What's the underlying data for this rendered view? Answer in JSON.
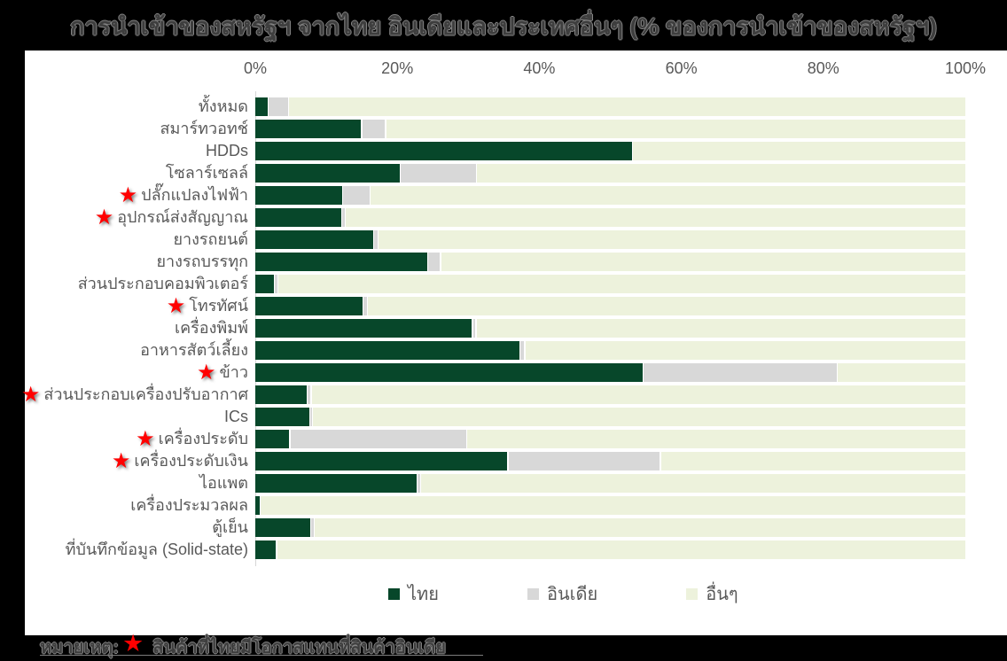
{
  "title": "การนำเข้าของสหรัฐฯ จากไทย อินเดียและประเทศอื่นๆ (% ของการนำเข้าของสหรัฐฯ)",
  "note": {
    "prefix": "หมายเหตุ:",
    "star": "★",
    "text": "สินค้าที่ไทยมีโอกาสแทนที่สินค้าอินเดีย"
  },
  "colors": {
    "thailand": "#07472a",
    "india": "#d8d8d8",
    "others": "#edf2dc",
    "star": "#ff0000",
    "label": "#595959",
    "panel_bg": "#ffffff",
    "page_bg": "#000000"
  },
  "chart_data": {
    "type": "bar",
    "orientation": "horizontal",
    "stacked": true,
    "title": "การนำเข้าของสหรัฐฯ จากไทย อินเดียและประเทศอื่นๆ (% ของการนำเข้าของสหรัฐฯ)",
    "xlabel": "",
    "ylabel": "",
    "xlim": [
      0,
      100
    ],
    "x_ticks": [
      "0%",
      "20%",
      "40%",
      "60%",
      "80%",
      "100%"
    ],
    "grid": false,
    "legend": [
      "ไทย",
      "อินเดีย",
      "อื่นๆ"
    ],
    "legend_position": "bottom",
    "star_note_categories": true,
    "categories": [
      "ทั้งหมด",
      "สมาร์ทวอทช์",
      "HDDs",
      "โซลาร์เซลล์",
      "ปลั๊กแปลงไฟฟ้า",
      "อุปกรณ์ส่งสัญญาณ",
      "ยางรถยนต์",
      "ยางรถบรรทุก",
      "ส่วนประกอบคอมพิวเตอร์",
      "โทรทัศน์",
      "เครื่องพิมพ์",
      "อาหารสัตว์เลี้ยง",
      "ข้าว",
      "ส่วนประกอบเครื่องปรับอากาศ",
      "ICs",
      "เครื่องประดับ",
      "เครื่องประดับเงิน",
      "ไอแพต",
      "เครื่องประมวลผล",
      "ตู้เย็น",
      "ที่บันทึกข้อมูล (Solid-state)"
    ],
    "starred": [
      false,
      false,
      false,
      false,
      true,
      true,
      false,
      false,
      false,
      true,
      false,
      false,
      true,
      true,
      false,
      true,
      true,
      false,
      false,
      false,
      false
    ],
    "series": [
      {
        "name": "ไทย",
        "values": [
          1.7,
          14.9,
          53.0,
          20.3,
          12.2,
          12.1,
          16.6,
          24.2,
          2.6,
          15.1,
          30.5,
          37.2,
          54.5,
          7.2,
          7.6,
          4.8,
          35.5,
          22.7,
          0.6,
          7.7,
          2.9
        ]
      },
      {
        "name": "อินเดีย",
        "values": [
          2.7,
          3.2,
          0,
          10.6,
          3.7,
          0.3,
          0.4,
          1.6,
          0.3,
          0.4,
          0.3,
          0.5,
          27.2,
          0.4,
          0.2,
          24.7,
          21.3,
          0.3,
          0,
          0.3,
          0
        ]
      },
      {
        "name": "อื่นๆ",
        "values": [
          95.6,
          81.9,
          47.0,
          69.1,
          84.1,
          87.6,
          83.0,
          74.2,
          97.1,
          84.5,
          69.2,
          62.3,
          18.3,
          92.4,
          92.2,
          70.5,
          43.2,
          77.0,
          99.4,
          92.0,
          97.1
        ]
      }
    ]
  }
}
